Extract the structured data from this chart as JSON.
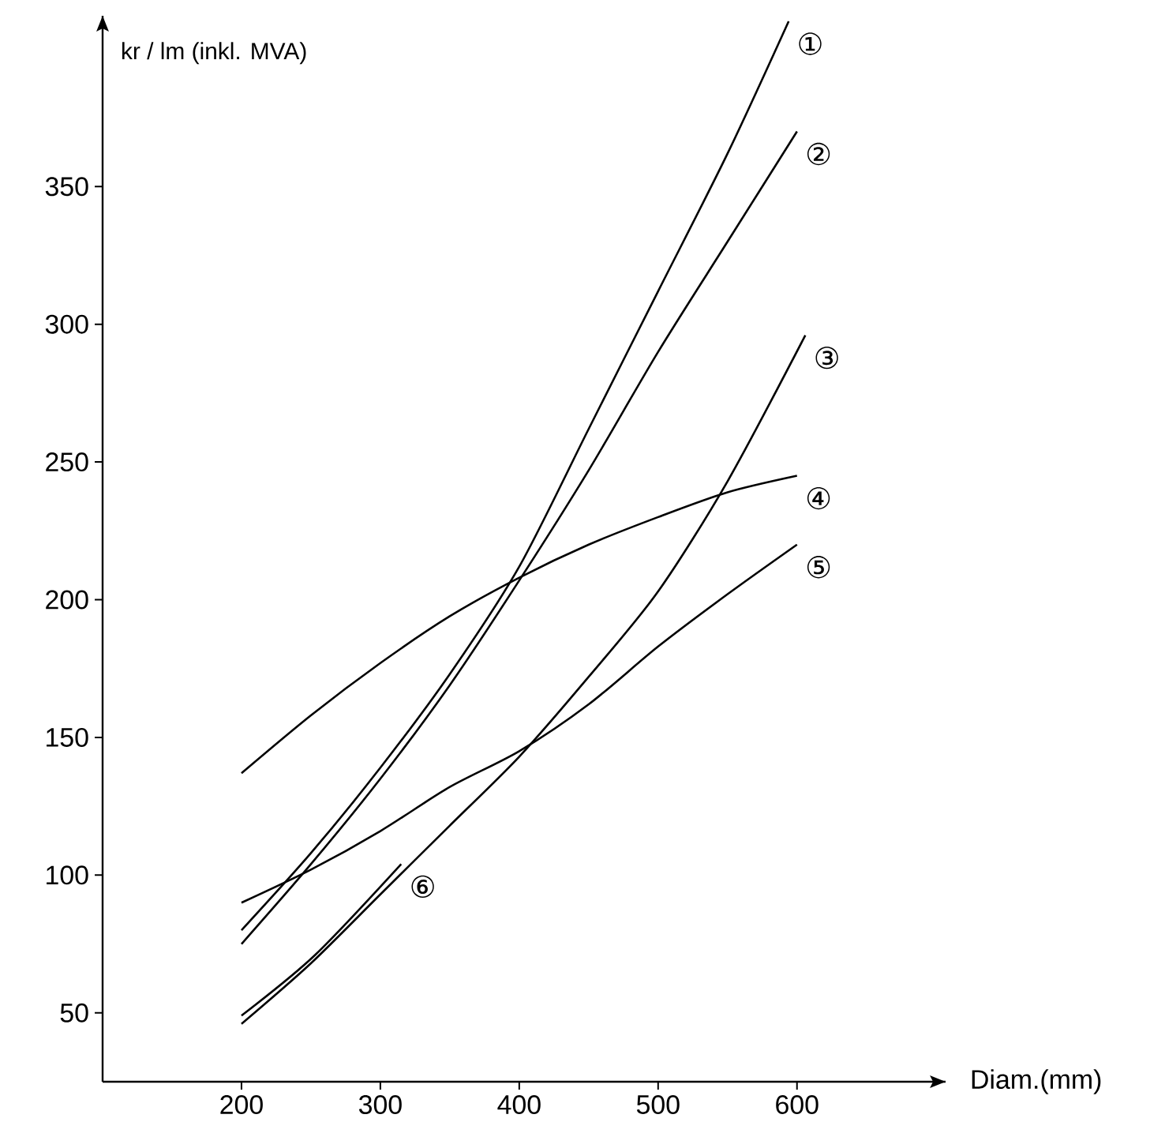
{
  "chart_data": {
    "type": "line",
    "xlabel": "Diam.(mm)",
    "ylabel": "kr / lm (inkl. MVA)",
    "xlim": [
      100,
      707
    ],
    "ylim": [
      25,
      412
    ],
    "xticks": [
      200,
      300,
      400,
      500,
      600
    ],
    "yticks": [
      50,
      100,
      150,
      200,
      250,
      300,
      350
    ],
    "marker": "none",
    "line_style": "solid",
    "legend": false,
    "grid": false,
    "series": [
      {
        "name": "①",
        "color": "#000000",
        "x": [
          200,
          250,
          300,
          350,
          400,
          450,
          500,
          550,
          594
        ],
        "values": [
          80,
          108,
          139,
          173,
          212,
          262,
          312,
          362,
          410
        ]
      },
      {
        "name": "②",
        "color": "#000000",
        "x": [
          200,
          250,
          300,
          350,
          400,
          450,
          500,
          550,
          600
        ],
        "values": [
          75,
          104,
          135,
          169,
          207,
          247,
          290,
          330,
          370
        ]
      },
      {
        "name": "③",
        "color": "#000000",
        "x": [
          200,
          250,
          300,
          350,
          400,
          450,
          500,
          550,
          606
        ],
        "values": [
          46,
          68,
          93,
          118,
          143,
          172,
          203,
          243,
          296
        ]
      },
      {
        "name": "④",
        "color": "#000000",
        "x": [
          200,
          250,
          300,
          350,
          400,
          450,
          500,
          550,
          600
        ],
        "values": [
          137,
          158,
          177,
          194,
          208,
          220,
          230,
          239,
          245
        ]
      },
      {
        "name": "⑤",
        "color": "#000000",
        "x": [
          200,
          250,
          300,
          350,
          400,
          450,
          500,
          550,
          600
        ],
        "values": [
          90,
          102,
          116,
          132,
          145,
          162,
          183,
          202,
          220
        ]
      },
      {
        "name": "⑥",
        "color": "#000000",
        "x": [
          200,
          253,
          315
        ],
        "values": [
          49,
          71,
          104
        ]
      }
    ]
  }
}
